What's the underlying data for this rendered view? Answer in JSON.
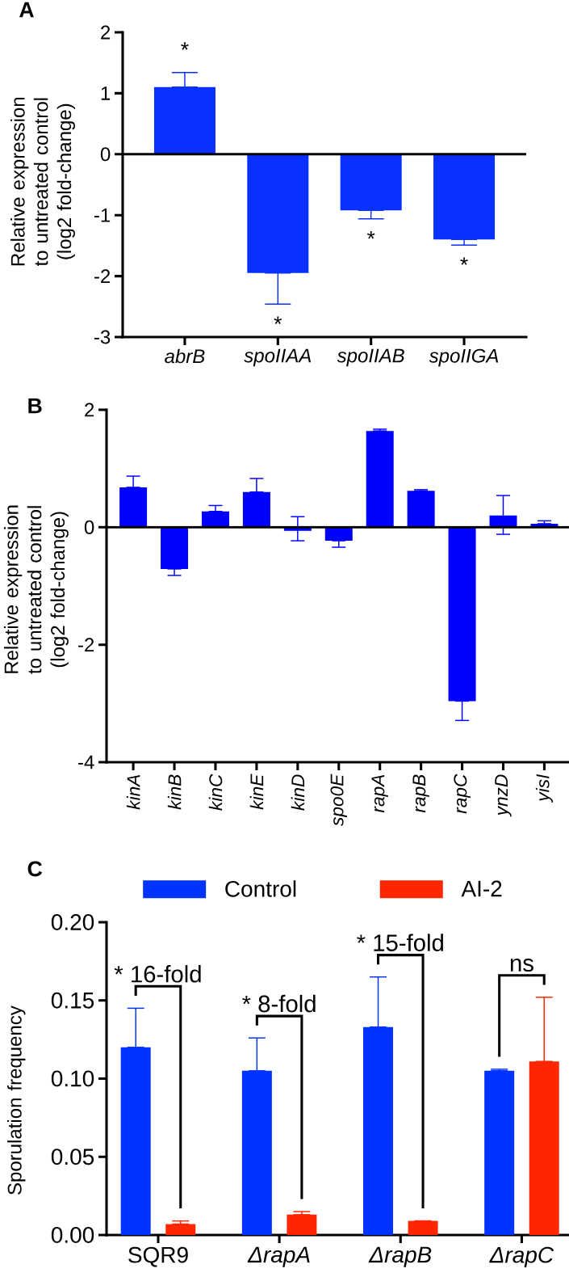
{
  "chart_data": [
    {
      "type": "bar",
      "title": "A",
      "ylabel": "Relative expression to untreated control (log2 fold-change)",
      "categories": [
        "abrB",
        "spoIIAA",
        "spoIIAB",
        "spoIIGA"
      ],
      "series": [
        {
          "color": "#0a30ff",
          "values": [
            1.1,
            -1.95,
            -0.92,
            -1.4
          ],
          "errors": [
            [
              1.1,
              1.34
            ],
            [
              -2.46,
              -1.95
            ],
            [
              -1.06,
              -0.92
            ],
            [
              -1.49,
              -1.4
            ]
          ]
        }
      ],
      "ylim": [
        -3,
        2
      ],
      "yticks": [
        -3,
        -2,
        -1,
        0,
        1,
        2
      ],
      "ref_lines": [
        {
          "axis": "y",
          "value": 0
        }
      ],
      "annotations": [
        "*",
        "*",
        "*",
        "*"
      ]
    },
    {
      "type": "bar",
      "title": "B",
      "ylabel": "Relative expression to untreated control (log2 fold-change)",
      "categories": [
        "kinA",
        "kinB",
        "kinC",
        "kinE",
        "kinD",
        "spo0E",
        "rapA",
        "rapB",
        "rapC",
        "ynzD",
        "yisI"
      ],
      "series": [
        {
          "color": "#0000ff",
          "values": [
            0.68,
            -0.71,
            0.27,
            0.6,
            -0.06,
            -0.23,
            1.64,
            0.62,
            -2.96,
            0.2,
            0.06
          ],
          "errors": [
            [
              0.68,
              0.87
            ],
            [
              -0.82,
              -0.71
            ],
            [
              0.27,
              0.37
            ],
            [
              0.6,
              0.83
            ],
            [
              -0.23,
              0.18
            ],
            [
              -0.34,
              -0.23
            ],
            [
              1.64,
              1.67
            ],
            [
              0.62,
              0.64
            ],
            [
              -3.29,
              -2.96
            ],
            [
              -0.12,
              0.54
            ],
            [
              0.06,
              0.11
            ]
          ]
        }
      ],
      "ylim": [
        -4,
        2
      ],
      "yticks": [
        -4,
        -2,
        0,
        2
      ],
      "ref_lines": [
        {
          "axis": "y",
          "value": 0
        }
      ]
    },
    {
      "type": "bar",
      "title": "C",
      "ylabel": "Sporulation frequency",
      "categories": [
        "SQR9",
        "*ΔrapA*",
        "*ΔrapB*",
        "*ΔrapC*"
      ],
      "series": [
        {
          "name": "Control",
          "color": "#0033ff",
          "values": [
            0.12,
            0.105,
            0.133,
            0.105
          ],
          "errors": [
            [
              0.12,
              0.145
            ],
            [
              0.105,
              0.126
            ],
            [
              0.133,
              0.165
            ],
            [
              0.105,
              0.106
            ]
          ]
        },
        {
          "name": "AI-2",
          "color": "#ff2600",
          "values": [
            0.007,
            0.013,
            0.009,
            0.111
          ],
          "errors": [
            [
              0.007,
              0.009
            ],
            [
              0.013,
              0.015
            ],
            [
              0.009,
              0.009
            ],
            [
              0.111,
              0.152
            ]
          ]
        }
      ],
      "ylim": [
        0,
        0.2
      ],
      "yticks": [
        {
          "value": 0,
          "label": "0.00"
        },
        {
          "value": 0.05,
          "label": "0.05"
        },
        {
          "value": 0.1,
          "label": "0.10"
        },
        {
          "value": 0.15,
          "label": "0.15"
        },
        {
          "value": 0.2,
          "label": "0.20"
        }
      ],
      "legend": "top",
      "annotations": [
        "* 16-fold",
        "* 8-fold",
        "* 15-fold",
        "ns"
      ]
    }
  ]
}
